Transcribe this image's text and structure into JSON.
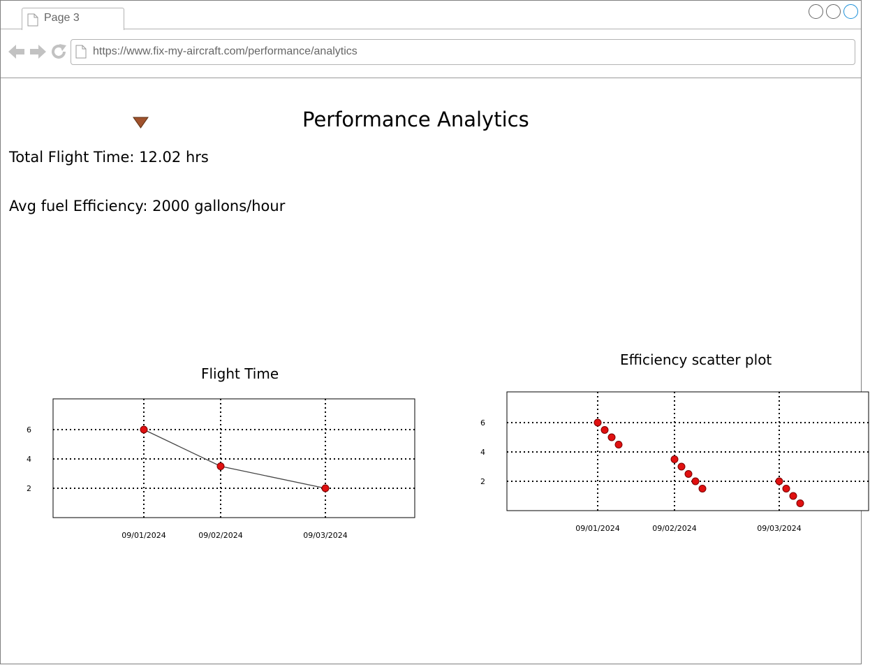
{
  "browser": {
    "tab_label": "Page 3",
    "url": "https://www.fix-my-aircraft.com/performance/analytics"
  },
  "page": {
    "title": "Performance Analytics",
    "total_flight_time": "Total Flight Time: 12.02 hrs",
    "avg_fuel_efficiency": "Avg fuel Efficiency: 2000 gallons/hour"
  },
  "colors": {
    "point_fill": "#e01010",
    "dropdown_arrow": "#a0522d",
    "line": "#444444",
    "grid": "#000000"
  },
  "chart_data": [
    {
      "type": "line",
      "title": "Flight Time",
      "xlabel": "",
      "ylabel": "",
      "x": [
        "09/01/2024",
        "09/02/2024",
        "09/03/2024"
      ],
      "yticks": [
        2,
        4,
        6
      ],
      "ylim": [
        0,
        8
      ],
      "grid": true,
      "series": [
        {
          "values": [
            6.0,
            3.5,
            2.0
          ]
        }
      ]
    },
    {
      "type": "scatter",
      "title": "Efficiency scatter plot",
      "xlabel": "",
      "ylabel": "",
      "x": [
        "09/01/2024",
        "09/02/2024",
        "09/03/2024"
      ],
      "yticks": [
        2,
        4,
        6
      ],
      "ylim": [
        0,
        8
      ],
      "grid": true,
      "points": [
        {
          "x": "09/01/2024",
          "ys": [
            6.0,
            5.5,
            5.0,
            4.5
          ]
        },
        {
          "x": "09/02/2024",
          "ys": [
            3.5,
            3.0,
            2.5,
            2.0,
            1.5
          ]
        },
        {
          "x": "09/03/2024",
          "ys": [
            2.0,
            1.5,
            1.0,
            0.5
          ]
        }
      ]
    }
  ]
}
